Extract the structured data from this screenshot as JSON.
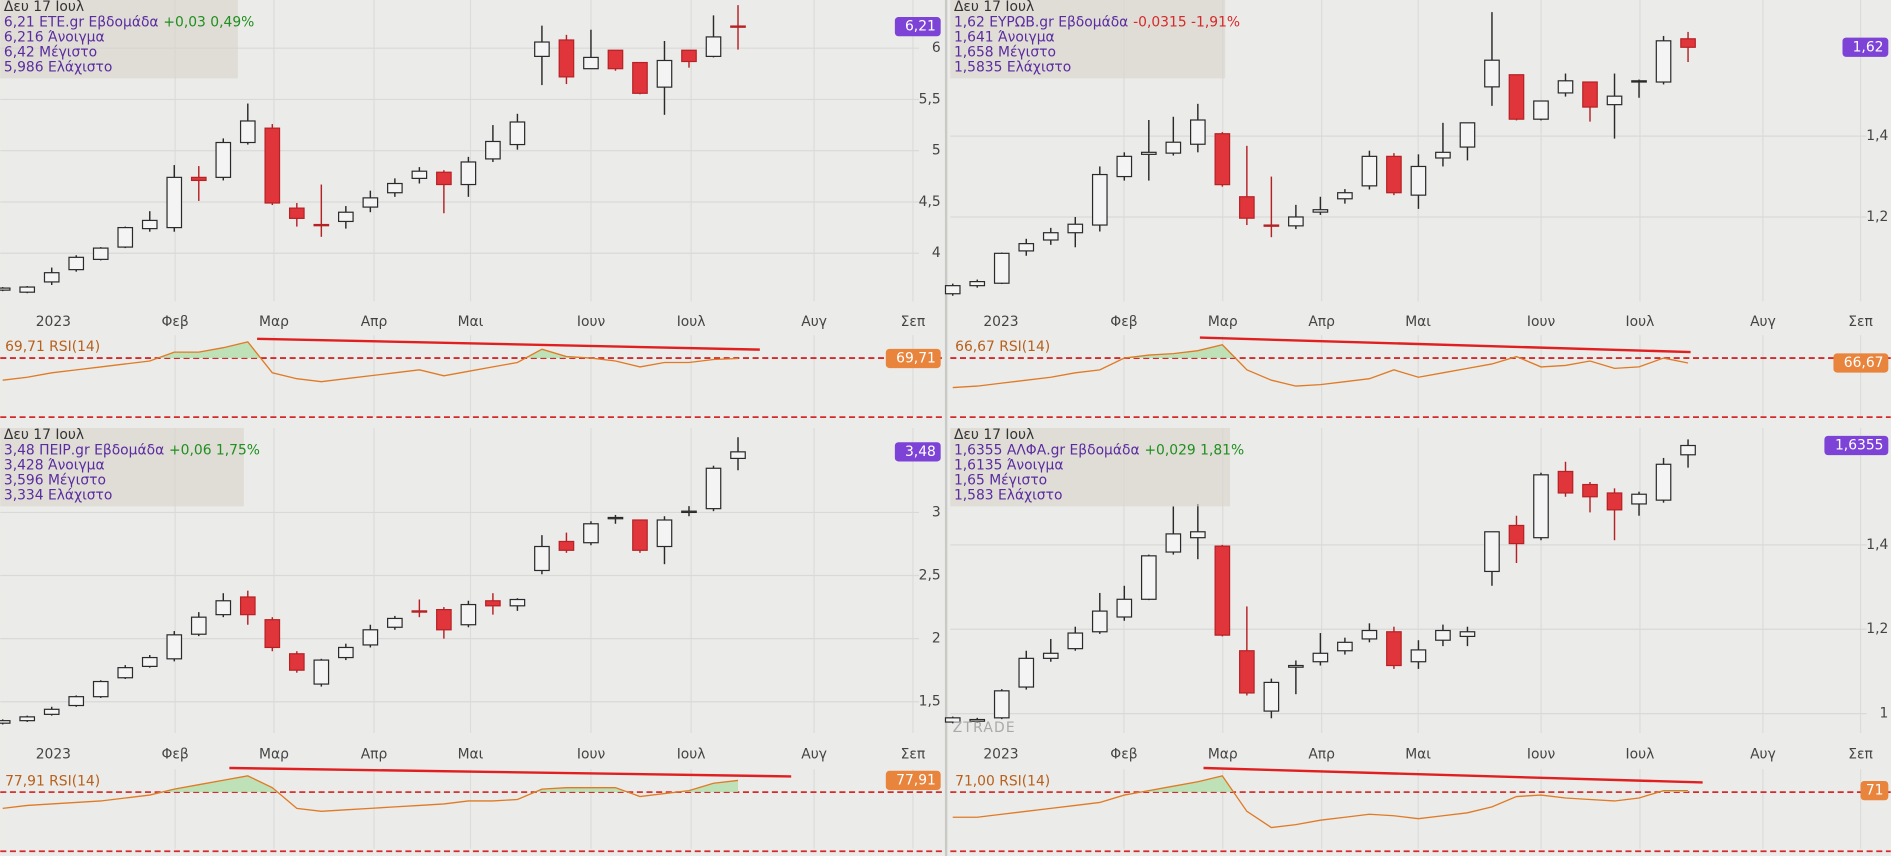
{
  "chart_data": [
    {
      "type": "candlestick",
      "date": "Δευ 17 Ιουλ",
      "name": "6,21 ETE.gr Εβδομάδα",
      "change": "+0,03 0,49%",
      "change_color": "#1f8f1f",
      "open_label": "6,216 Άνοιγμα",
      "high_label": "6,42 Μέγιστο",
      "low_label": "5,986 Ελάχιστο",
      "last_label": "6,21",
      "rsi_label": "69,71 RSI(14)",
      "rsi_tag": "69,71",
      "up_color": "#f4f4f4",
      "down_color": "#e0353a",
      "months": [
        "2023",
        "Φεβ",
        "Μαρ",
        "Απρ",
        "Μαι",
        "Ιουν",
        "Ιουλ",
        "Αυγ",
        "Σεπ"
      ],
      "ylim": [
        3.53,
        6.47
      ],
      "yticks": [
        6,
        {
          "value": 5.5,
          "label": "5,5"
        },
        5,
        {
          "value": 4.5,
          "label": "4,5"
        },
        4
      ],
      "open": [
        3.64,
        3.62,
        3.72,
        3.84,
        3.94,
        4.06,
        4.24,
        4.25,
        4.74,
        4.74,
        5.08,
        5.22,
        4.44,
        4.28,
        4.31,
        4.45,
        4.59,
        4.73,
        4.79,
        4.67,
        4.92,
        5.06,
        5.92,
        6.08,
        5.8,
        5.98,
        5.86,
        5.62,
        5.98,
        5.92,
        6.216
      ],
      "high": [
        3.67,
        3.68,
        3.86,
        3.98,
        4.06,
        4.26,
        4.41,
        4.86,
        4.85,
        5.12,
        5.46,
        5.26,
        4.49,
        4.67,
        4.46,
        4.61,
        4.73,
        4.84,
        4.81,
        4.94,
        5.25,
        5.36,
        6.22,
        6.13,
        6.18,
        5.98,
        5.86,
        6.07,
        5.98,
        6.32,
        6.42
      ],
      "low": [
        3.63,
        3.61,
        3.69,
        3.82,
        3.93,
        4.05,
        4.21,
        4.21,
        4.51,
        4.71,
        5.06,
        4.47,
        4.26,
        4.16,
        4.24,
        4.4,
        4.55,
        4.68,
        4.39,
        4.55,
        4.89,
        5.01,
        5.64,
        5.65,
        5.8,
        5.78,
        5.55,
        5.35,
        5.81,
        5.91,
        5.986
      ],
      "close": [
        3.66,
        3.67,
        3.81,
        3.96,
        4.05,
        4.25,
        4.32,
        4.74,
        4.71,
        5.08,
        5.29,
        4.49,
        4.34,
        4.27,
        4.4,
        4.54,
        4.68,
        4.8,
        4.67,
        4.89,
        5.09,
        5.28,
        6.06,
        5.72,
        5.91,
        5.8,
        5.56,
        5.88,
        5.87,
        6.11,
        6.21
      ],
      "rsi": [
        55,
        57,
        60,
        62,
        64,
        66,
        68,
        74,
        74,
        77,
        81,
        60,
        56,
        54,
        56,
        58,
        60,
        62,
        58,
        61,
        64,
        67,
        76,
        71,
        70,
        68,
        64,
        67,
        67,
        69,
        69.71
      ],
      "rsi_ylim": [
        26.7,
        85.5
      ],
      "rsi_levels": [
        70,
        30
      ],
      "rsi_color": "#e07a25"
    },
    {
      "type": "candlestick",
      "date": "Δευ 17 Ιουλ",
      "name": "1,62 ΕΥΡΩΒ.gr Εβδομάδα",
      "change": "-0,0315 -1,91%",
      "change_color": "#d62a2a",
      "open_label": "1,641 Άνοιγμα",
      "high_label": "1,658 Μέγιστο",
      "low_label": "1,5835 Ελάχιστο",
      "last_label": "1,62",
      "rsi_label": "66,67 RSI(14)",
      "rsi_tag": "66,67",
      "up_color": "#f4f4f4",
      "down_color": "#e0353a",
      "months": [
        "2023",
        "Φεβ",
        "Μαρ",
        "Απρ",
        "Μαι",
        "Ιουν",
        "Ιουλ",
        "Αυγ",
        "Σεπ"
      ],
      "ylim": [
        0.991,
        1.737
      ],
      "yticks": [
        {
          "value": 1.4,
          "label": "1,4"
        },
        {
          "value": 1.2,
          "label": "1,2"
        }
      ],
      "open": [
        1.01,
        1.03,
        1.036,
        1.116,
        1.143,
        1.161,
        1.18,
        1.3,
        1.355,
        1.358,
        1.38,
        1.406,
        1.25,
        1.18,
        1.178,
        1.212,
        1.245,
        1.277,
        1.35,
        1.254,
        1.346,
        1.373,
        1.522,
        1.552,
        1.442,
        1.507,
        1.534,
        1.478,
        1.535,
        1.534,
        1.641
      ],
      "high": [
        1.035,
        1.045,
        1.112,
        1.146,
        1.173,
        1.2,
        1.325,
        1.36,
        1.44,
        1.448,
        1.48,
        1.41,
        1.376,
        1.3,
        1.23,
        1.25,
        1.269,
        1.364,
        1.358,
        1.355,
        1.433,
        1.433,
        1.707,
        1.552,
        1.487,
        1.555,
        1.534,
        1.555,
        1.54,
        1.648,
        1.658
      ],
      "low": [
        1.005,
        1.025,
        1.034,
        1.104,
        1.131,
        1.125,
        1.164,
        1.29,
        1.29,
        1.352,
        1.36,
        1.275,
        1.18,
        1.15,
        1.17,
        1.205,
        1.233,
        1.268,
        1.254,
        1.22,
        1.325,
        1.34,
        1.475,
        1.439,
        1.439,
        1.498,
        1.436,
        1.394,
        1.495,
        1.528,
        1.5835
      ],
      "close": [
        1.03,
        1.04,
        1.11,
        1.134,
        1.161,
        1.182,
        1.305,
        1.35,
        1.36,
        1.385,
        1.44,
        1.28,
        1.197,
        1.178,
        1.2,
        1.218,
        1.26,
        1.35,
        1.26,
        1.325,
        1.36,
        1.433,
        1.588,
        1.442,
        1.487,
        1.537,
        1.472,
        1.499,
        1.537,
        1.636,
        1.62
      ],
      "rsi": [
        50,
        51,
        53,
        55,
        57,
        60,
        62,
        70,
        72,
        73,
        75,
        79,
        62,
        55,
        51,
        52,
        54,
        56,
        62,
        57,
        60,
        63,
        66,
        71,
        64,
        65,
        68,
        63,
        64,
        70,
        66.67
      ],
      "rsi_ylim": [
        26.7,
        85.5
      ],
      "rsi_levels": [
        70,
        30
      ],
      "rsi_color": "#e07a25"
    },
    {
      "type": "candlestick",
      "date": "Δευ 17 Ιουλ",
      "name": "3,48 ΠΕΙΡ.gr Εβδομάδα",
      "change": "+0,06 1,75%",
      "change_color": "#1f8f1f",
      "open_label": "3,428 Άνοιγμα",
      "high_label": "3,596 Μέγιστο",
      "low_label": "3,334 Ελάχιστο",
      "last_label": "3,48",
      "rsi_label": "77,91 RSI(14)",
      "rsi_tag": "77,91",
      "up_color": "#f4f4f4",
      "down_color": "#e0353a",
      "months": [
        "2023",
        "Φεβ",
        "Μαρ",
        "Απρ",
        "Μαι",
        "Ιουν",
        "Ιουλ",
        "Αυγ",
        "Σεπ"
      ],
      "ylim": [
        1.252,
        3.669
      ],
      "yticks": [
        3,
        {
          "value": 2.5,
          "label": "2,5"
        },
        2,
        {
          "value": 1.5,
          "label": "1,5"
        }
      ],
      "open": [
        1.33,
        1.35,
        1.4,
        1.47,
        1.54,
        1.69,
        1.78,
        1.84,
        2.035,
        2.19,
        2.33,
        2.15,
        1.88,
        1.64,
        1.85,
        1.95,
        2.09,
        2.22,
        2.23,
        2.11,
        2.3,
        2.26,
        2.54,
        2.77,
        2.76,
        2.95,
        2.94,
        2.73,
        3.0,
        3.03,
        3.428
      ],
      "high": [
        1.36,
        1.39,
        1.46,
        1.55,
        1.67,
        1.79,
        1.87,
        2.06,
        2.21,
        2.36,
        2.38,
        2.17,
        1.9,
        1.84,
        1.96,
        2.11,
        2.18,
        2.31,
        2.25,
        2.3,
        2.36,
        2.32,
        2.82,
        2.84,
        2.93,
        2.98,
        2.94,
        2.97,
        3.05,
        3.37,
        3.596
      ],
      "low": [
        1.32,
        1.34,
        1.39,
        1.46,
        1.53,
        1.68,
        1.77,
        1.82,
        2.02,
        2.17,
        2.11,
        1.9,
        1.73,
        1.62,
        1.83,
        1.93,
        2.07,
        2.17,
        2.0,
        2.09,
        2.19,
        2.22,
        2.51,
        2.68,
        2.74,
        2.91,
        2.68,
        2.59,
        2.97,
        3.01,
        3.334
      ],
      "close": [
        1.35,
        1.38,
        1.44,
        1.54,
        1.66,
        1.77,
        1.85,
        2.03,
        2.17,
        2.3,
        2.19,
        1.93,
        1.75,
        1.83,
        1.93,
        2.07,
        2.16,
        2.21,
        2.07,
        2.27,
        2.26,
        2.31,
        2.73,
        2.7,
        2.91,
        2.96,
        2.7,
        2.94,
        3.01,
        3.35,
        3.48
      ],
      "rsi": [
        59,
        61,
        62,
        63,
        64,
        66,
        68,
        72,
        75,
        78,
        81,
        73,
        59,
        57,
        58,
        59,
        60,
        61,
        62,
        64,
        64,
        65,
        72,
        73,
        73,
        73,
        67,
        69,
        71,
        76,
        77.91
      ],
      "rsi_ylim": [
        28.4,
        85.5
      ],
      "rsi_levels": [
        70,
        30
      ],
      "rsi_color": "#e07a25"
    },
    {
      "type": "candlestick",
      "date": "Δευ 17 Ιουλ",
      "name": "1,6355 ΑΛΦΑ.gr Εβδομάδα",
      "change": "+0,029 1,81%",
      "change_color": "#1f8f1f",
      "open_label": "1,6135 Άνοιγμα",
      "high_label": "1,65 Μέγιστο",
      "low_label": "1,583 Ελάχιστο",
      "last_label": "1,6355",
      "rsi_label": "71,00 RSI(14)",
      "rsi_tag": "71",
      "up_color": "#f4f4f4",
      "down_color": "#e0353a",
      "watermark": "ZTRADE",
      "months": [
        "2023",
        "Φεβ",
        "Μαρ",
        "Απρ",
        "Μαι",
        "Ιουν",
        "Ιουλ",
        "Αυγ",
        "Σεπ"
      ],
      "ylim": [
        0.954,
        1.677
      ],
      "yticks": [
        {
          "value": 1.4,
          "label": "1,4"
        },
        {
          "value": 1.2,
          "label": "1,2"
        },
        1
      ],
      "open": [
        0.98,
        0.982,
        0.99,
        1.063,
        1.131,
        1.154,
        1.194,
        1.229,
        1.271,
        1.383,
        1.417,
        1.397,
        1.149,
        1.006,
        1.11,
        1.123,
        1.149,
        1.177,
        1.194,
        1.123,
        1.174,
        1.183,
        1.337,
        1.446,
        1.417,
        1.574,
        1.543,
        1.523,
        1.497,
        1.506,
        1.6135
      ],
      "high": [
        0.993,
        0.99,
        1.058,
        1.149,
        1.177,
        1.206,
        1.286,
        1.303,
        1.377,
        1.491,
        1.497,
        1.4,
        1.254,
        1.083,
        1.126,
        1.191,
        1.18,
        1.214,
        1.206,
        1.174,
        1.211,
        1.206,
        1.431,
        1.469,
        1.571,
        1.597,
        1.549,
        1.534,
        1.526,
        1.606,
        1.65
      ],
      "low": [
        0.977,
        0.978,
        0.987,
        1.057,
        1.123,
        1.149,
        1.189,
        1.22,
        1.269,
        1.377,
        1.366,
        1.183,
        1.043,
        0.989,
        1.046,
        1.114,
        1.14,
        1.169,
        1.106,
        1.106,
        1.16,
        1.16,
        1.303,
        1.357,
        1.411,
        1.514,
        1.477,
        1.411,
        1.469,
        1.5,
        1.583
      ],
      "close": [
        0.99,
        0.986,
        1.054,
        1.131,
        1.143,
        1.191,
        1.243,
        1.271,
        1.374,
        1.426,
        1.431,
        1.186,
        1.049,
        1.074,
        1.114,
        1.143,
        1.169,
        1.197,
        1.114,
        1.151,
        1.197,
        1.194,
        1.431,
        1.403,
        1.566,
        1.523,
        1.514,
        1.483,
        1.52,
        1.591,
        1.6355
      ],
      "rsi": [
        53,
        53,
        55,
        57,
        59,
        61,
        63,
        68,
        71,
        74,
        77,
        81,
        57,
        46,
        48,
        51,
        53,
        55,
        54,
        52,
        54,
        56,
        60,
        67,
        68,
        66,
        65,
        64,
        66,
        71,
        71
      ],
      "rsi_ylim": [
        28.4,
        85.5
      ],
      "rsi_levels": [
        70,
        30
      ],
      "rsi_color": "#e07a25"
    }
  ]
}
